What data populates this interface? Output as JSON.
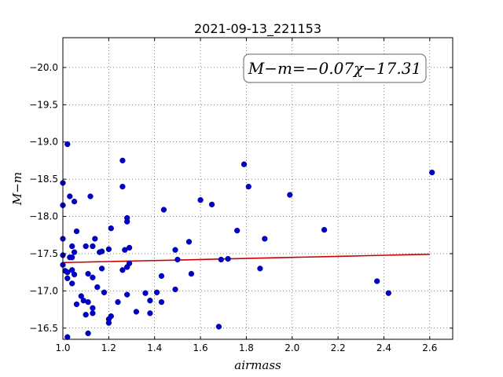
{
  "chart_data": {
    "type": "scatter",
    "title": "2021-09-13_221153",
    "xlabel": "airmass",
    "ylabel": "M−m",
    "xlim": [
      1.0,
      2.7
    ],
    "ylim": [
      -20.4,
      -16.35
    ],
    "y_inverted": true,
    "grid": true,
    "xticks": [
      1.0,
      1.2,
      1.4,
      1.6,
      1.8,
      2.0,
      2.2,
      2.4,
      2.6
    ],
    "xtick_labels": [
      "1.0",
      "1.2",
      "1.4",
      "1.6",
      "1.8",
      "2.0",
      "2.2",
      "2.4",
      "2.6"
    ],
    "yticks": [
      -16.5,
      -17.0,
      -17.5,
      -18.0,
      -18.5,
      -19.0,
      -19.5,
      -20.0
    ],
    "ytick_labels": [
      "−16.5",
      "−17.0",
      "−17.5",
      "−18.0",
      "−18.5",
      "−19.0",
      "−19.5",
      "−20.0"
    ],
    "annotation": "M−m=−0.07χ−17.31",
    "point_color": "#0000cc",
    "fit_color": "#cc0000",
    "points": [
      [
        1.0,
        -17.35
      ],
      [
        1.01,
        -17.27
      ],
      [
        1.0,
        -17.48
      ],
      [
        1.0,
        -17.7
      ],
      [
        1.0,
        -18.15
      ],
      [
        1.0,
        -18.45
      ],
      [
        1.02,
        -16.38
      ],
      [
        1.02,
        -17.25
      ],
      [
        1.02,
        -17.17
      ],
      [
        1.03,
        -17.45
      ],
      [
        1.03,
        -18.27
      ],
      [
        1.04,
        -17.28
      ],
      [
        1.04,
        -17.1
      ],
      [
        1.04,
        -17.45
      ],
      [
        1.04,
        -17.6
      ],
      [
        1.05,
        -17.22
      ],
      [
        1.05,
        -17.52
      ],
      [
        1.05,
        -18.2
      ],
      [
        1.06,
        -16.82
      ],
      [
        1.06,
        -17.8
      ],
      [
        1.02,
        -18.97
      ],
      [
        1.08,
        -16.93
      ],
      [
        1.09,
        -16.87
      ],
      [
        1.1,
        -16.68
      ],
      [
        1.1,
        -17.6
      ],
      [
        1.11,
        -16.43
      ],
      [
        1.11,
        -16.85
      ],
      [
        1.11,
        -17.23
      ],
      [
        1.12,
        -18.27
      ],
      [
        1.13,
        -16.7
      ],
      [
        1.13,
        -16.77
      ],
      [
        1.13,
        -17.18
      ],
      [
        1.13,
        -17.6
      ],
      [
        1.14,
        -17.7
      ],
      [
        1.15,
        -17.05
      ],
      [
        1.16,
        -17.52
      ],
      [
        1.17,
        -17.3
      ],
      [
        1.17,
        -17.53
      ],
      [
        1.18,
        -16.98
      ],
      [
        1.2,
        -16.57
      ],
      [
        1.2,
        -16.62
      ],
      [
        1.21,
        -16.66
      ],
      [
        1.2,
        -17.56
      ],
      [
        1.21,
        -17.84
      ],
      [
        1.24,
        -16.85
      ],
      [
        1.26,
        -17.28
      ],
      [
        1.27,
        -17.55
      ],
      [
        1.26,
        -18.4
      ],
      [
        1.26,
        -18.75
      ],
      [
        1.28,
        -16.95
      ],
      [
        1.28,
        -17.32
      ],
      [
        1.29,
        -17.37
      ],
      [
        1.29,
        -17.58
      ],
      [
        1.28,
        -17.93
      ],
      [
        1.28,
        -17.98
      ],
      [
        1.32,
        -16.72
      ],
      [
        1.36,
        -16.97
      ],
      [
        1.38,
        -16.7
      ],
      [
        1.38,
        -16.87
      ],
      [
        1.41,
        -16.98
      ],
      [
        1.43,
        -16.85
      ],
      [
        1.43,
        -17.2
      ],
      [
        1.44,
        -18.09
      ],
      [
        1.49,
        -17.02
      ],
      [
        1.49,
        -17.55
      ],
      [
        1.5,
        -17.42
      ],
      [
        1.55,
        -17.66
      ],
      [
        1.56,
        -17.23
      ],
      [
        1.6,
        -18.22
      ],
      [
        1.65,
        -18.16
      ],
      [
        1.68,
        -16.52
      ],
      [
        1.69,
        -17.42
      ],
      [
        1.72,
        -17.43
      ],
      [
        1.76,
        -17.81
      ],
      [
        1.79,
        -18.7
      ],
      [
        1.81,
        -18.4
      ],
      [
        1.86,
        -17.3
      ],
      [
        1.88,
        -17.7
      ],
      [
        1.99,
        -18.29
      ],
      [
        2.14,
        -17.82
      ],
      [
        2.37,
        -17.13
      ],
      [
        2.42,
        -16.97
      ],
      [
        2.61,
        -18.59
      ]
    ],
    "fit_line": {
      "slope": -0.07,
      "intercept": -17.31,
      "x": [
        1.0,
        1.05,
        1.2,
        1.25,
        1.35,
        1.45,
        1.6,
        1.7,
        1.85,
        2.0,
        2.2,
        2.4,
        2.6
      ]
    }
  }
}
